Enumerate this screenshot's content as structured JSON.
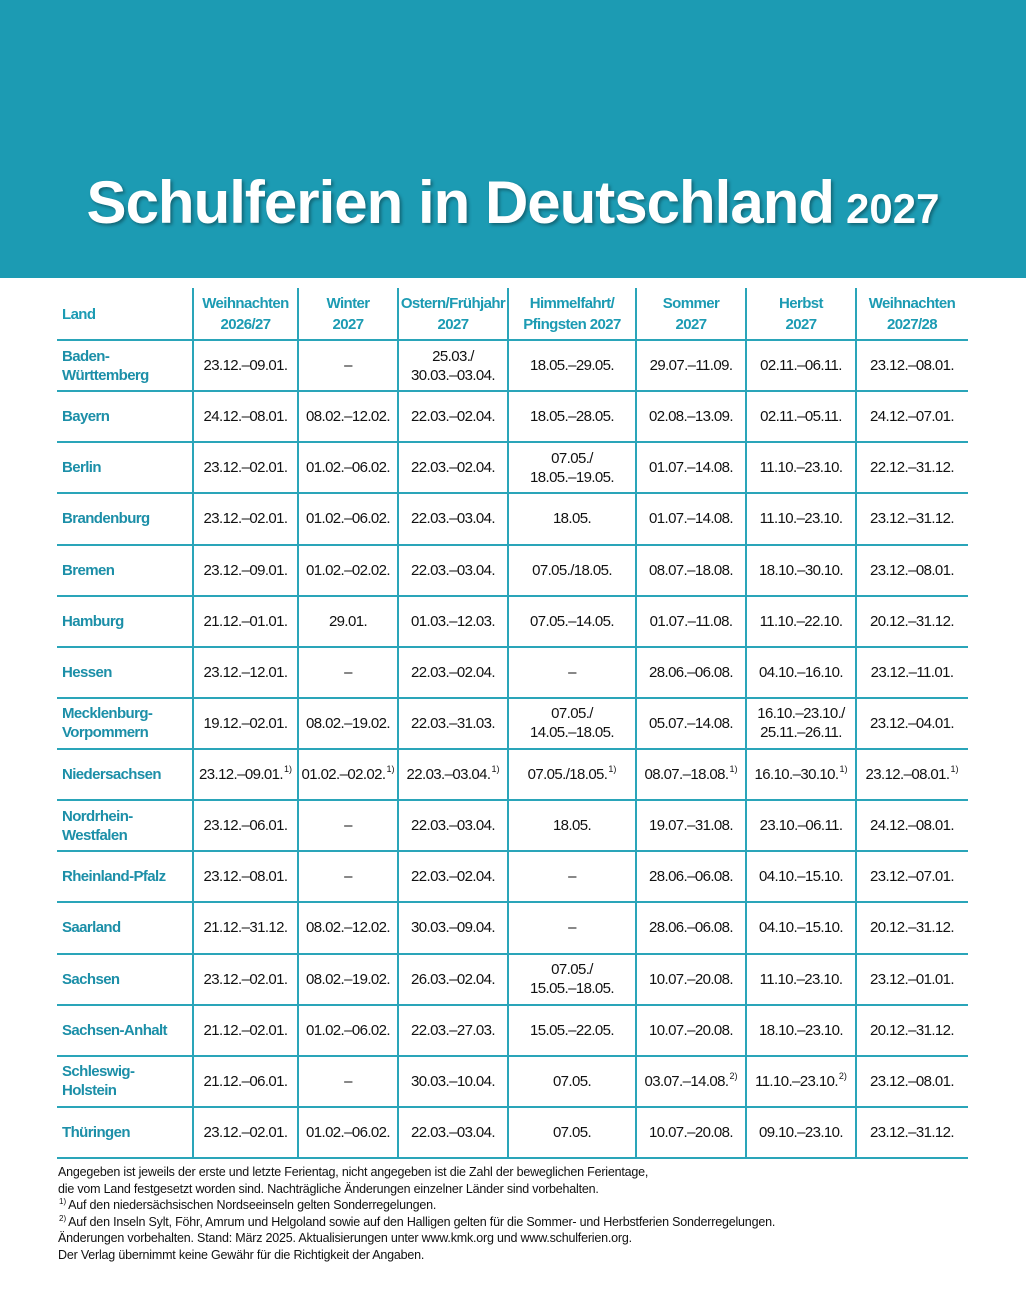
{
  "header": {
    "title": "Schulferien in Deutschland",
    "year": "2027"
  },
  "table": {
    "columns": [
      "Land",
      "Weihnachten\n2026/27",
      "Winter\n2027",
      "Ostern/Frühjahr\n2027",
      "Himmelfahrt/\nPfingsten 2027",
      "Sommer\n2027",
      "Herbst\n2027",
      "Weihnachten\n2027/28"
    ],
    "rows": [
      {
        "land": "Baden-\nWürttemberg",
        "cells": [
          "23.12.–09.01.",
          "–",
          "25.03./\n30.03.–03.04.",
          "18.05.–29.05.",
          "29.07.–11.09.",
          "02.11.–06.11.",
          "23.12.–08.01."
        ]
      },
      {
        "land": "Bayern",
        "cells": [
          "24.12.–08.01.",
          "08.02.–12.02.",
          "22.03.–02.04.",
          "18.05.–28.05.",
          "02.08.–13.09.",
          "02.11.–05.11.",
          "24.12.–07.01."
        ]
      },
      {
        "land": "Berlin",
        "cells": [
          "23.12.–02.01.",
          "01.02.–06.02.",
          "22.03.–02.04.",
          "07.05./\n18.05.–19.05.",
          "01.07.–14.08.",
          "11.10.–23.10.",
          "22.12.–31.12."
        ]
      },
      {
        "land": "Brandenburg",
        "cells": [
          "23.12.–02.01.",
          "01.02.–06.02.",
          "22.03.–03.04.",
          "18.05.",
          "01.07.–14.08.",
          "11.10.–23.10.",
          "23.12.–31.12."
        ]
      },
      {
        "land": "Bremen",
        "cells": [
          "23.12.–09.01.",
          "01.02.–02.02.",
          "22.03.–03.04.",
          "07.05./18.05.",
          "08.07.–18.08.",
          "18.10.–30.10.",
          "23.12.–08.01."
        ]
      },
      {
        "land": "Hamburg",
        "cells": [
          "21.12.–01.01.",
          "29.01.",
          "01.03.–12.03.",
          "07.05.–14.05.",
          "01.07.–11.08.",
          "11.10.–22.10.",
          "20.12.–31.12."
        ]
      },
      {
        "land": "Hessen",
        "cells": [
          "23.12.–12.01.",
          "–",
          "22.03.–02.04.",
          "–",
          "28.06.–06.08.",
          "04.10.–16.10.",
          "23.12.–11.01."
        ]
      },
      {
        "land": "Mecklenburg-\nVorpommern",
        "cells": [
          "19.12.–02.01.",
          "08.02.–19.02.",
          "22.03.–31.03.",
          "07.05./\n14.05.–18.05.",
          "05.07.–14.08.",
          "16.10.–23.10./\n25.11.–26.11.",
          "23.12.–04.01."
        ]
      },
      {
        "land": "Niedersachsen",
        "cells": [
          {
            "text": "23.12.–09.01.",
            "note": "1)"
          },
          {
            "text": "01.02.–02.02.",
            "note": "1)"
          },
          {
            "text": "22.03.–03.04.",
            "note": "1)"
          },
          {
            "text": "07.05./18.05.",
            "note": "1)"
          },
          {
            "text": "08.07.–18.08.",
            "note": "1)"
          },
          {
            "text": "16.10.–30.10.",
            "note": "1)"
          },
          {
            "text": "23.12.–08.01.",
            "note": "1)"
          }
        ]
      },
      {
        "land": "Nordrhein-\nWestfalen",
        "cells": [
          "23.12.–06.01.",
          "–",
          "22.03.–03.04.",
          "18.05.",
          "19.07.–31.08.",
          "23.10.–06.11.",
          "24.12.–08.01."
        ]
      },
      {
        "land": "Rheinland-Pfalz",
        "cells": [
          "23.12.–08.01.",
          "–",
          "22.03.–02.04.",
          "–",
          "28.06.–06.08.",
          "04.10.–15.10.",
          "23.12.–07.01."
        ]
      },
      {
        "land": "Saarland",
        "cells": [
          "21.12.–31.12.",
          "08.02.–12.02.",
          "30.03.–09.04.",
          "–",
          "28.06.–06.08.",
          "04.10.–15.10.",
          "20.12.–31.12."
        ]
      },
      {
        "land": "Sachsen",
        "cells": [
          "23.12.–02.01.",
          "08.02.–19.02.",
          "26.03.–02.04.",
          "07.05./\n15.05.–18.05.",
          "10.07.–20.08.",
          "11.10.–23.10.",
          "23.12.–01.01."
        ]
      },
      {
        "land": "Sachsen-Anhalt",
        "cells": [
          "21.12.–02.01.",
          "01.02.–06.02.",
          "22.03.–27.03.",
          "15.05.–22.05.",
          "10.07.–20.08.",
          "18.10.–23.10.",
          "20.12.–31.12."
        ]
      },
      {
        "land": "Schleswig-\nHolstein",
        "cells": [
          "21.12.–06.01.",
          "–",
          "30.03.–10.04.",
          "07.05.",
          {
            "text": "03.07.–14.08.",
            "note": "2)"
          },
          {
            "text": "11.10.–23.10.",
            "note": "2)"
          },
          "23.12.–08.01."
        ]
      },
      {
        "land": "Thüringen",
        "cells": [
          "23.12.–02.01.",
          "01.02.–06.02.",
          "22.03.–03.04.",
          "07.05.",
          "10.07.–20.08.",
          "09.10.–23.10.",
          "23.12.–31.12."
        ]
      }
    ]
  },
  "footer": {
    "lines": [
      {
        "text": "Angegeben ist jeweils der erste und letzte Ferientag, nicht angegeben ist die Zahl der beweglichen Ferientage,"
      },
      {
        "text": "die vom Land festgesetzt worden sind. Nachträgliche Änderungen einzelner Länder sind vorbehalten."
      },
      {
        "note": "1)",
        "text": "Auf den niedersächsischen Nordseeinseln gelten Sonderregelungen."
      },
      {
        "note": "2)",
        "text": "Auf den Inseln Sylt, Föhr, Amrum und Helgoland sowie auf den Halligen gelten für die Sommer- und Herbstferien Sonderregelungen."
      },
      {
        "text": "Änderungen vorbehalten. Stand: März 2025. Aktualisierungen unter www.kmk.org und www.schulferien.org."
      },
      {
        "text": "Der Verlag übernimmt keine Gewähr für die Richtigkeit der Angaben."
      }
    ]
  }
}
